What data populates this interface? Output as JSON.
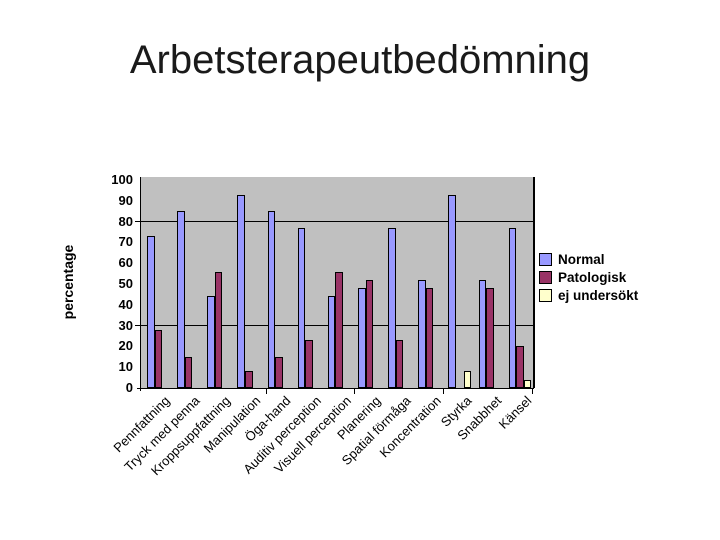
{
  "slide": {
    "title": "Arbetsterapeutbedömning"
  },
  "chart_data": {
    "type": "bar",
    "title": "Arbetsterapeutbedömning",
    "xlabel": "",
    "ylabel": "percentage",
    "ylim": [
      0,
      100
    ],
    "ytick_interval": 10,
    "gridlines_at": [
      30,
      80
    ],
    "grid": "horizontal-partial",
    "legend_position": "right",
    "plot_background": "#C0C0C0",
    "categories": [
      "Pennfattning",
      "Tryck med penna",
      "Kroppsuppfattning",
      "Manipulation",
      "Öga-hand",
      "Auditiv perception",
      "Visuell perception",
      "Planering",
      "Spatial förmåga",
      "Koncentration",
      "Styrka",
      "Snabbhet",
      "Känsel"
    ],
    "series": [
      {
        "name": "Normal",
        "color": "#9999FF",
        "values": [
          73,
          85,
          44,
          93,
          85,
          77,
          44,
          48,
          77,
          52,
          93,
          52,
          77
        ]
      },
      {
        "name": "Patologisk",
        "color": "#993366",
        "values": [
          28,
          15,
          56,
          8,
          15,
          23,
          56,
          52,
          23,
          48,
          0,
          48,
          20
        ]
      },
      {
        "name": "ej undersökt",
        "color": "#FFFFCC",
        "values": [
          0,
          0,
          0,
          0,
          0,
          0,
          0,
          0,
          0,
          0,
          8,
          0,
          4
        ]
      }
    ]
  }
}
